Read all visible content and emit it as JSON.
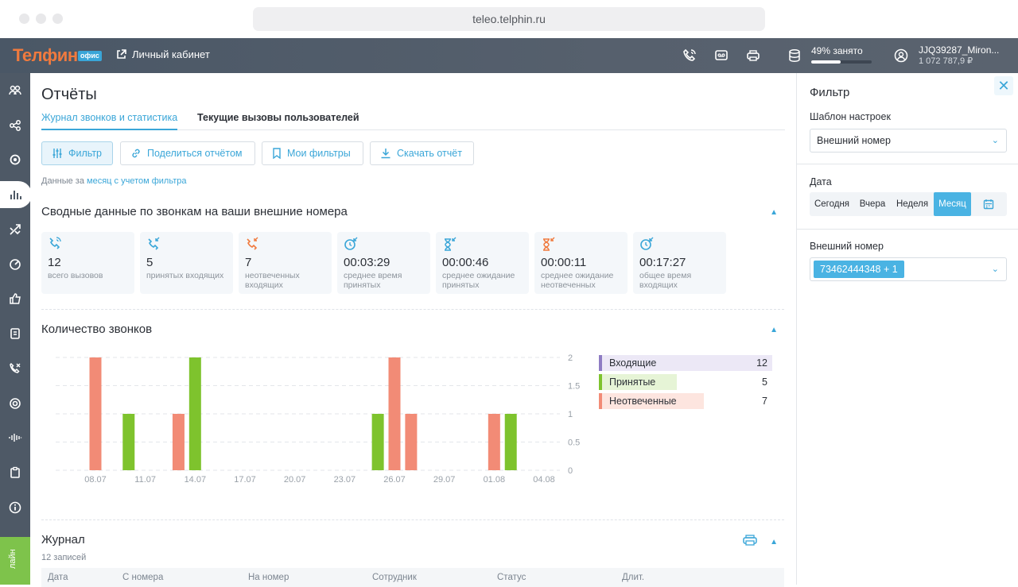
{
  "browser": {
    "url": "teleo.telphin.ru"
  },
  "header": {
    "logo": "Телфин",
    "logo_badge": "офис",
    "cabinet_link": "Личный кабинет",
    "storage_label": "49% занято",
    "storage_pct": 49,
    "account_name": "JJQ39287_Miron...",
    "account_balance": "1 072 787,9 ₽"
  },
  "main": {
    "title": "Отчёты",
    "tabs": [
      {
        "label": "Журнал звонков и статистика",
        "active": true
      },
      {
        "label": "Текущие вызовы пользователей",
        "active": false
      }
    ],
    "toolbar": {
      "filter": "Фильтр",
      "share": "Поделиться отчётом",
      "my_filters": "Мои фильтры",
      "download": "Скачать отчёт"
    },
    "data_note_prefix": "Данные за",
    "data_note_link": "месяц с учетом фильтра",
    "summary_title": "Сводные данные по звонкам на ваши внешние номера",
    "stats": [
      {
        "value": "12",
        "label": "всего вызовов",
        "icon": "phone-icon",
        "color": "#3aa6d8"
      },
      {
        "value": "5",
        "label": "принятых входящих",
        "icon": "incoming-call-icon",
        "color": "#3aa6d8"
      },
      {
        "value": "7",
        "label": "неотвеченных входящих",
        "icon": "missed-call-icon",
        "color": "#f07a3e"
      },
      {
        "value": "00:03:29",
        "label": "среднее время принятых",
        "icon": "clock-incoming-icon",
        "color": "#3aa6d8"
      },
      {
        "value": "00:00:46",
        "label": "среднее ожидание принятых",
        "icon": "hourglass-incoming-icon",
        "color": "#3aa6d8"
      },
      {
        "value": "00:00:11",
        "label": "среднее ожидание неотвеченных",
        "icon": "hourglass-missed-icon",
        "color": "#f07a3e"
      },
      {
        "value": "00:17:27",
        "label": "общее время входящих",
        "icon": "clock-total-icon",
        "color": "#3aa6d8"
      }
    ],
    "calls_title": "Количество звонков",
    "legend": [
      {
        "name": "Входящие",
        "value": "12",
        "color": "#8e7cc3",
        "bg": "#ece8f6"
      },
      {
        "name": "Принятые",
        "value": "5",
        "color": "#7ec32d",
        "bg": "#e6f4d6"
      },
      {
        "name": "Неотвеченные",
        "value": "7",
        "color": "#f28b76",
        "bg": "#fde5df"
      }
    ],
    "journal_title": "Журнал",
    "journal_count": "12 записей",
    "journal_columns": [
      "Дата",
      "С номера",
      "На номер",
      "Сотрудник",
      "Статус",
      "Длит."
    ]
  },
  "chart_data": {
    "type": "bar",
    "x_ticks": [
      "08.07",
      "11.07",
      "14.07",
      "17.07",
      "20.07",
      "23.07",
      "26.07",
      "29.07",
      "01.08",
      "04.08"
    ],
    "y_ticks": [
      "0",
      "0.5",
      "1",
      "1.5",
      "2"
    ],
    "ylim": [
      0,
      2
    ],
    "series": [
      {
        "name": "Принятые",
        "color": "#7ec32d",
        "points": [
          {
            "date": "10.07",
            "value": 1
          },
          {
            "date": "14.07",
            "value": 2
          },
          {
            "date": "25.07",
            "value": 1
          },
          {
            "date": "02.08",
            "value": 1
          }
        ]
      },
      {
        "name": "Неотвеченные",
        "color": "#f28b76",
        "points": [
          {
            "date": "08.07",
            "value": 2
          },
          {
            "date": "13.07",
            "value": 1
          },
          {
            "date": "26.07",
            "value": 2
          },
          {
            "date": "27.07",
            "value": 1
          },
          {
            "date": "01.08",
            "value": 1
          }
        ]
      }
    ]
  },
  "filter": {
    "title": "Фильтр",
    "close": "✕",
    "template_label": "Шаблон настроек",
    "template_value": "Внешний номер",
    "date_label": "Дата",
    "date_options": [
      {
        "label": "Сегодня",
        "active": false
      },
      {
        "label": "Вчера",
        "active": false
      },
      {
        "label": "Неделя",
        "active": false
      },
      {
        "label": "Месяц",
        "active": true
      }
    ],
    "number_label": "Внешний номер",
    "number_value": "73462444348 + 1"
  },
  "sidebar": {
    "items": [
      "users-icon",
      "org-structure-icon",
      "settings-icon",
      "reports-icon",
      "routing-icon",
      "speedometer-icon",
      "like-icon",
      "contacts-icon",
      "call-forward-icon",
      "record-icon",
      "sound-wave-icon",
      "clipboard-icon",
      "info-icon"
    ],
    "online_label": "лайн"
  }
}
